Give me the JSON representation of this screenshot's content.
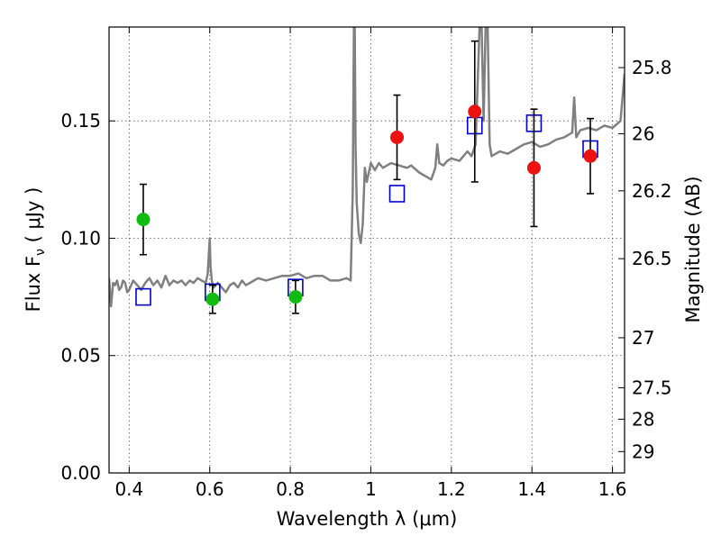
{
  "chart_data": {
    "type": "scatter",
    "xlabel": "Wavelength  λ (μm)",
    "ylabel": "Flux  F",
    "ylabel_sub": "ν",
    "ylabel_unit": "  ( μJy )",
    "y2label": "Magnitude (AB)",
    "xlim": [
      0.35,
      1.63
    ],
    "ylim": [
      0.0,
      0.19
    ],
    "grid": true,
    "x_ticks": [
      0.4,
      0.6,
      0.8,
      1.0,
      1.2,
      1.4,
      1.6
    ],
    "x_tick_labels": [
      "0.4",
      "0.6",
      "0.8",
      "1",
      "1.2",
      "1.4",
      "1.6"
    ],
    "y_ticks": [
      0.0,
      0.05,
      0.1,
      0.15
    ],
    "y_tick_labels": [
      "0.00",
      "0.05",
      "0.10",
      "0.15"
    ],
    "y2_ticks": [
      {
        "label": "25.8",
        "flux": 0.1727
      },
      {
        "label": "26",
        "flux": 0.1445
      },
      {
        "label": "26.2",
        "flux": 0.1202
      },
      {
        "label": "26.5",
        "flux": 0.0913
      },
      {
        "label": "27",
        "flux": 0.0576
      },
      {
        "label": "27.5",
        "flux": 0.0363
      },
      {
        "label": "28",
        "flux": 0.0229
      },
      {
        "label": "29",
        "flux": 0.0091
      }
    ],
    "series": [
      {
        "kind": "line",
        "color": "#808080",
        "x": [
          0.35,
          0.355,
          0.36,
          0.365,
          0.37,
          0.375,
          0.38,
          0.385,
          0.39,
          0.395,
          0.4,
          0.41,
          0.42,
          0.43,
          0.44,
          0.45,
          0.46,
          0.47,
          0.48,
          0.49,
          0.5,
          0.51,
          0.52,
          0.53,
          0.54,
          0.55,
          0.56,
          0.57,
          0.58,
          0.59,
          0.595,
          0.6,
          0.602,
          0.605,
          0.608,
          0.61,
          0.62,
          0.63,
          0.64,
          0.65,
          0.66,
          0.67,
          0.68,
          0.69,
          0.7,
          0.72,
          0.74,
          0.76,
          0.78,
          0.8,
          0.82,
          0.84,
          0.86,
          0.88,
          0.9,
          0.92,
          0.94,
          0.95,
          0.955,
          0.958,
          0.96,
          0.962,
          0.965,
          0.97,
          0.975,
          0.98,
          0.985,
          0.99,
          0.995,
          1.0,
          1.01,
          1.02,
          1.03,
          1.05,
          1.07,
          1.09,
          1.1,
          1.12,
          1.14,
          1.15,
          1.16,
          1.165,
          1.17,
          1.18,
          1.19,
          1.2,
          1.22,
          1.24,
          1.25,
          1.26,
          1.27,
          1.275,
          1.28,
          1.285,
          1.29,
          1.295,
          1.3,
          1.32,
          1.34,
          1.36,
          1.38,
          1.4,
          1.42,
          1.44,
          1.46,
          1.48,
          1.5,
          1.505,
          1.51,
          1.52,
          1.54,
          1.56,
          1.58,
          1.6,
          1.62,
          1.63
        ],
        "y": [
          0.083,
          0.071,
          0.081,
          0.08,
          0.082,
          0.078,
          0.079,
          0.082,
          0.081,
          0.077,
          0.078,
          0.082,
          0.08,
          0.078,
          0.081,
          0.083,
          0.08,
          0.082,
          0.079,
          0.084,
          0.08,
          0.082,
          0.081,
          0.082,
          0.08,
          0.082,
          0.081,
          0.083,
          0.082,
          0.081,
          0.085,
          0.1,
          0.088,
          0.082,
          0.08,
          0.079,
          0.081,
          0.079,
          0.077,
          0.08,
          0.081,
          0.079,
          0.082,
          0.08,
          0.081,
          0.083,
          0.082,
          0.083,
          0.084,
          0.084,
          0.085,
          0.083,
          0.084,
          0.084,
          0.082,
          0.082,
          0.083,
          0.082,
          0.12,
          0.19,
          0.19,
          0.14,
          0.115,
          0.102,
          0.098,
          0.106,
          0.13,
          0.124,
          0.128,
          0.132,
          0.129,
          0.132,
          0.13,
          0.132,
          0.131,
          0.13,
          0.131,
          0.128,
          0.126,
          0.125,
          0.13,
          0.14,
          0.132,
          0.131,
          0.133,
          0.134,
          0.133,
          0.137,
          0.135,
          0.14,
          0.19,
          0.19,
          0.15,
          0.19,
          0.19,
          0.14,
          0.135,
          0.137,
          0.136,
          0.138,
          0.14,
          0.141,
          0.139,
          0.14,
          0.142,
          0.143,
          0.145,
          0.16,
          0.143,
          0.146,
          0.147,
          0.146,
          0.148,
          0.147,
          0.15,
          0.17
        ]
      },
      {
        "kind": "points",
        "marker": "square",
        "color": "#0000cc",
        "x": [
          0.435,
          0.607,
          0.813,
          1.065,
          1.258,
          1.405,
          1.545
        ],
        "y": [
          0.075,
          0.077,
          0.079,
          0.119,
          0.148,
          0.149,
          0.138
        ]
      },
      {
        "kind": "points",
        "marker": "circle",
        "color": "#11bb11",
        "x": [
          0.435,
          0.607,
          0.813
        ],
        "y": [
          0.108,
          0.074,
          0.075
        ],
        "err_low": [
          0.015,
          0.006,
          0.007
        ],
        "err_high": [
          0.015,
          0.006,
          0.007
        ]
      },
      {
        "kind": "points",
        "marker": "circle",
        "color": "#ee1111",
        "x": [
          1.065,
          1.258,
          1.405,
          1.545
        ],
        "y": [
          0.143,
          0.154,
          0.13,
          0.135
        ],
        "err_low": [
          0.018,
          0.03,
          0.025,
          0.016
        ],
        "err_high": [
          0.018,
          0.03,
          0.025,
          0.016
        ]
      }
    ]
  }
}
